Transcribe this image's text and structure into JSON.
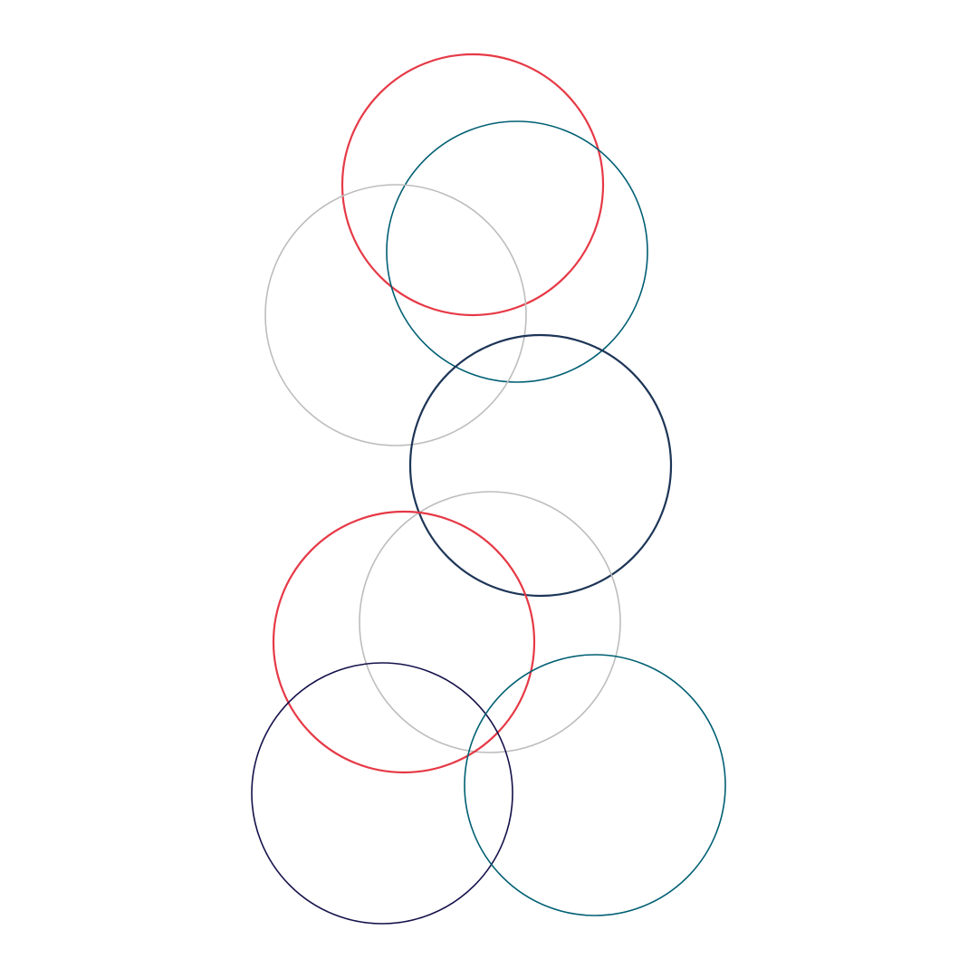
{
  "palette": {
    "red": "#e63946",
    "teal": "#005f73",
    "gray": "#bdbdbd",
    "navy": "#1d3557",
    "indigo": "#14114a",
    "background": "#ffffff"
  },
  "circles": [
    {
      "name": "circle-red-top",
      "color": "red"
    },
    {
      "name": "circle-teal-top",
      "color": "teal"
    },
    {
      "name": "circle-gray-top",
      "color": "gray"
    },
    {
      "name": "circle-navy-middle",
      "color": "navy"
    },
    {
      "name": "circle-gray-middle",
      "color": "gray"
    },
    {
      "name": "circle-red-lower",
      "color": "red"
    },
    {
      "name": "circle-indigo-bottom",
      "color": "indigo"
    },
    {
      "name": "circle-teal-bottom",
      "color": "teal"
    }
  ]
}
